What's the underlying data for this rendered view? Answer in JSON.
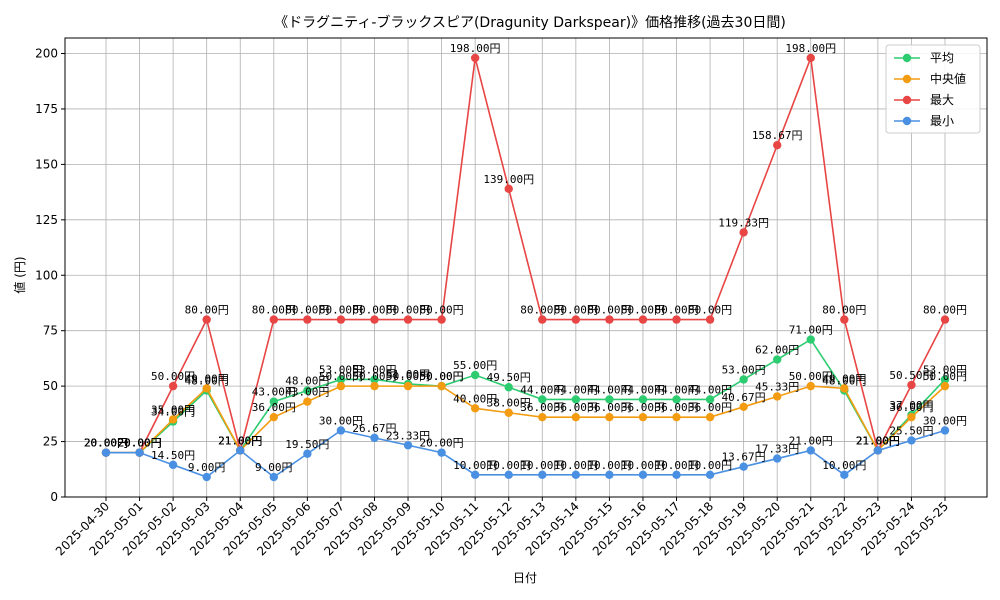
{
  "chart_data": {
    "type": "line",
    "title": "《ドラグニティ-ブラックスピア(Dragunity Darkspear)》価格推移(過去30日間)",
    "xlabel": "日付",
    "ylabel": "値 (円)",
    "ylim": [
      0,
      207
    ],
    "yticks": [
      0,
      25,
      50,
      75,
      100,
      125,
      150,
      175,
      200
    ],
    "grid": true,
    "legend_position": "top-right",
    "label_suffix": "円",
    "categories": [
      "2025-04-30",
      "2025-05-01",
      "2025-05-02",
      "2025-05-03",
      "2025-05-04",
      "2025-05-05",
      "2025-05-06",
      "2025-05-07",
      "2025-05-08",
      "2025-05-09",
      "2025-05-10",
      "2025-05-11",
      "2025-05-12",
      "2025-05-13",
      "2025-05-14",
      "2025-05-15",
      "2025-05-16",
      "2025-05-17",
      "2025-05-18",
      "2025-05-19",
      "2025-05-20",
      "2025-05-21",
      "2025-05-22",
      "2025-05-23",
      "2025-05-24",
      "2025-05-25"
    ],
    "series": [
      {
        "name": "平均",
        "color": "#2ecc71",
        "values": [
          20,
          20,
          34,
          48,
          21,
          43,
          48,
          53,
          53,
          51,
          50,
          55,
          49.5,
          44,
          44,
          44,
          44,
          44,
          44,
          53,
          62,
          71,
          48,
          21,
          37,
          53
        ]
      },
      {
        "name": "中央値",
        "color": "#f39c12",
        "values": [
          20,
          20,
          35,
          49,
          21,
          36,
          43,
          50,
          50,
          50,
          50,
          40,
          38,
          36,
          36,
          36,
          36,
          36,
          36,
          40.67,
          45.33,
          50,
          49,
          21,
          36,
          50
        ]
      },
      {
        "name": "最大",
        "color": "#e84545",
        "values": [
          20,
          20,
          50,
          80,
          21,
          80,
          80,
          80,
          80,
          80,
          80,
          198,
          139,
          80,
          80,
          80,
          80,
          80,
          80,
          119.33,
          158.67,
          198,
          80,
          21,
          50.5,
          80
        ]
      },
      {
        "name": "最小",
        "color": "#4a90e2",
        "values": [
          20,
          20,
          14.5,
          9,
          21,
          9,
          19.5,
          30,
          26.67,
          23.33,
          20,
          10,
          10,
          10,
          10,
          10,
          10,
          10,
          10,
          13.67,
          17.33,
          21,
          10,
          21,
          25.5,
          30
        ]
      }
    ]
  }
}
